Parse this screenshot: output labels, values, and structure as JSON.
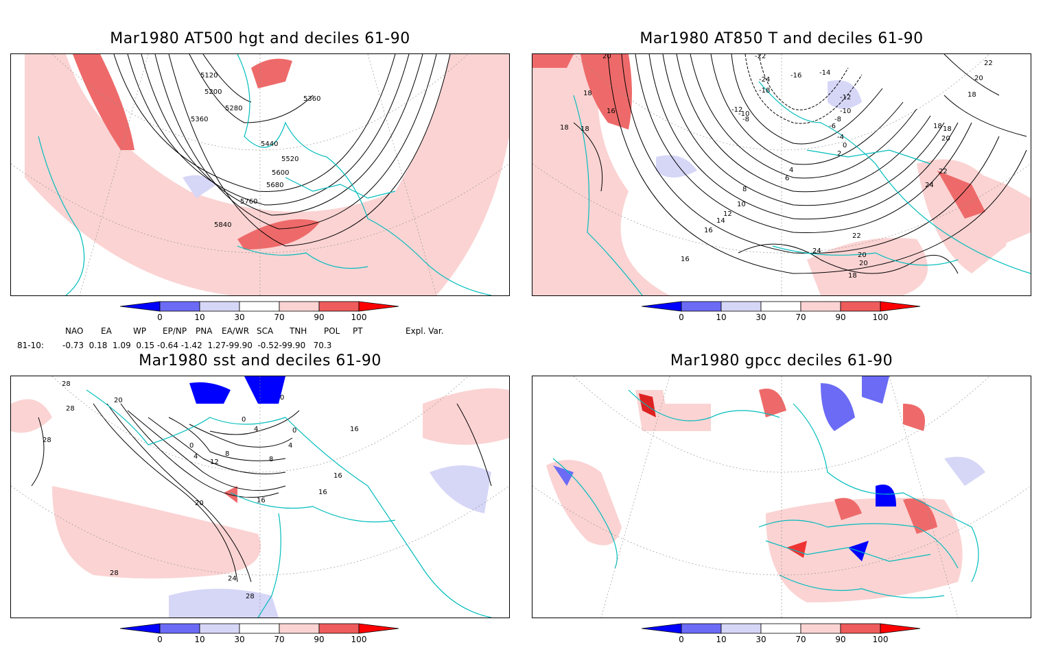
{
  "panels": [
    {
      "title": "Mar1980 AT500 hgt and deciles 61-90",
      "contour_labels": [
        "5120",
        "5200",
        "5280",
        "5360",
        "5360",
        "5440",
        "5520",
        "5600",
        "5680",
        "5760",
        "5840"
      ]
    },
    {
      "title": "Mar1980 AT850 T and deciles 61-90",
      "contour_labels": [
        "18",
        "20",
        "18",
        "16",
        "18",
        "-22",
        "-24",
        "-16",
        "-14",
        "-12",
        "-10",
        "-8",
        "-18",
        "-12",
        "-10",
        "-8",
        "-6",
        "-4",
        "-2",
        "0",
        "2",
        "4",
        "6",
        "8",
        "10",
        "12",
        "14",
        "16",
        "18",
        "20",
        "22",
        "24",
        "22",
        "20",
        "18",
        "16",
        "24",
        "20",
        "22",
        "20",
        "18",
        "18"
      ]
    },
    {
      "title": "Mar1980 sst and deciles 61-90",
      "contour_labels": [
        "28",
        "28",
        "20",
        "28",
        "0",
        "0",
        "4",
        "8",
        "12",
        "16",
        "20",
        "24",
        "28",
        "28",
        "16",
        "16",
        "16",
        "4",
        "0",
        "0",
        "4",
        "8"
      ]
    },
    {
      "title": "Mar1980 gpcc deciles 61-90",
      "contour_labels": []
    }
  ],
  "colorbar": {
    "ticks": [
      "0",
      "10",
      "30",
      "70",
      "90",
      "100"
    ],
    "colors": [
      "#0000ff",
      "#6b6bf5",
      "#d6d6f7",
      "#ffffff",
      "#fbd3d3",
      "#ee5c5c",
      "#ff0000"
    ]
  },
  "indices": {
    "header": [
      "NAO",
      "EA",
      "WP",
      "EP/NP",
      "PNA",
      "EA/WR",
      "SCA",
      "TNH",
      "POL",
      "PT",
      "Expl. Var."
    ],
    "row_label": "81-10:",
    "values_text": "-0.73  0.18  1.09  0.15 -0.64 -1.42  1.27-99.90  -0.52-99.90   70.3"
  }
}
